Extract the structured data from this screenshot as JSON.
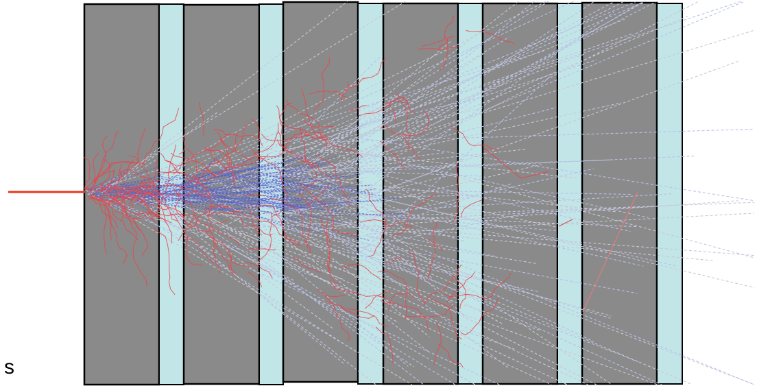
{
  "label": "s"
}
